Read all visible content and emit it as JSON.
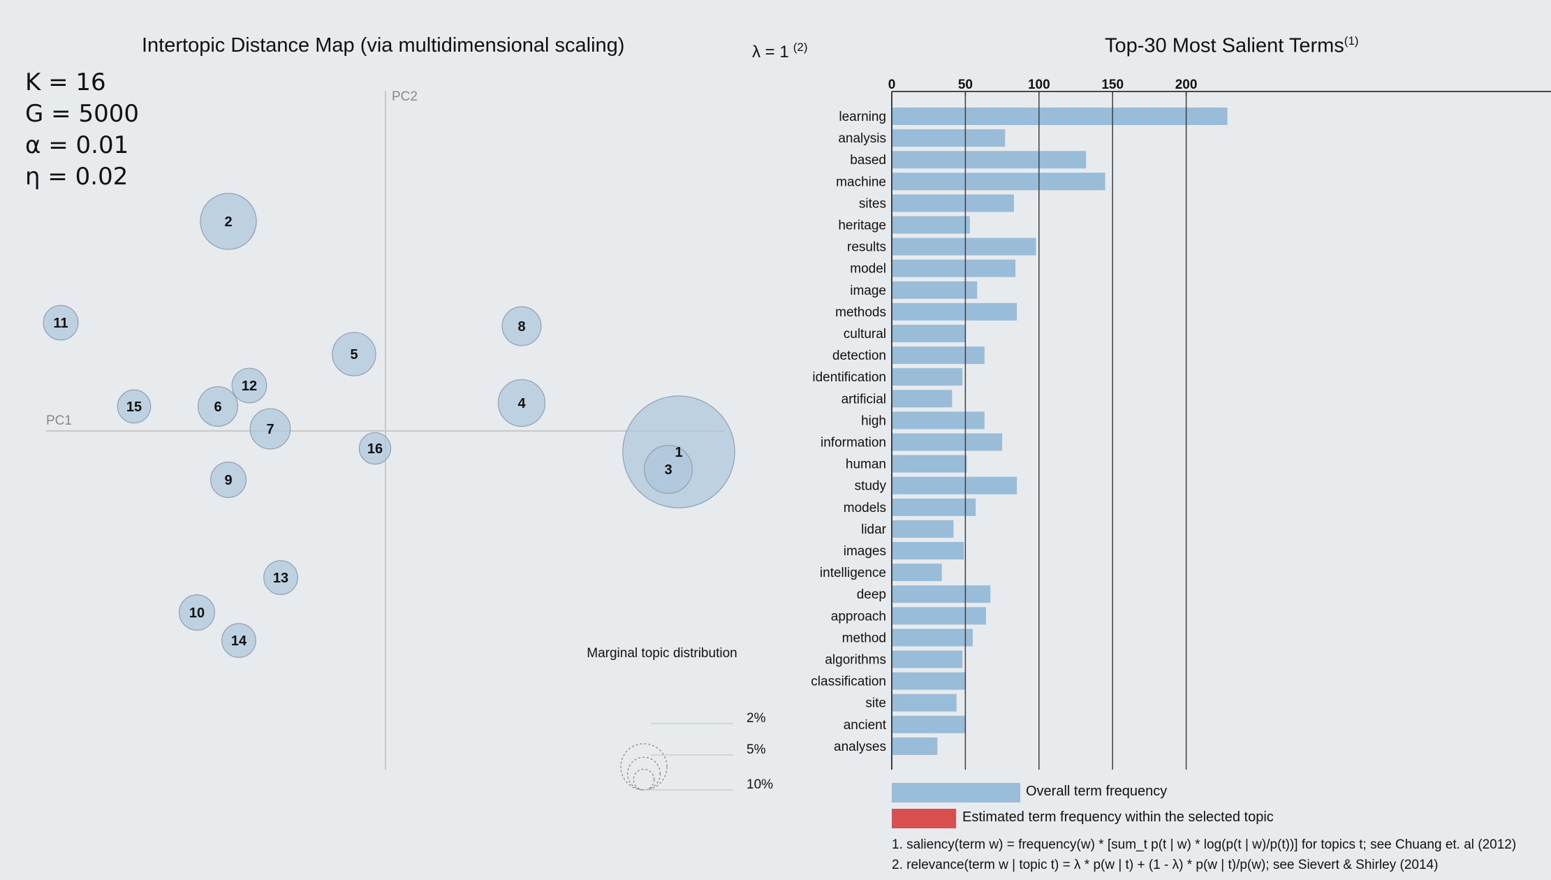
{
  "left": {
    "title": "Intertopic Distance Map (via multidimensional scaling)",
    "params": [
      "K = 16",
      "G = 5000",
      "α = 0.01",
      "η = 0.02"
    ],
    "axis_labels": {
      "pc1": "PC1",
      "pc2": "PC2"
    },
    "marginal": {
      "title": "Marginal topic distribution",
      "labels": [
        "2%",
        "5%",
        "10%"
      ]
    }
  },
  "right": {
    "lambda_label": "λ = 1",
    "lambda_sup": "(2)",
    "title": "Top-30 Most Salient Terms",
    "title_sup": "(1)",
    "legend": {
      "overall": "Overall term frequency",
      "estimated": "Estimated term frequency within the selected topic"
    },
    "footnotes": [
      "1. saliency(term w) = frequency(w) * [sum_t p(t | w) * log(p(t | w)/p(t))] for topics t; see Chuang et. al (2012)",
      "2. relevance(term w | topic t) = λ * p(w | t) + (1 - λ) * p(w | t)/p(w); see Sievert & Shirley (2014)"
    ]
  },
  "colors": {
    "bubble_fill": "#adc6db",
    "bubble_stroke": "#8fa0b0",
    "bar_blue": "#99bcd9",
    "bar_red": "#d94f4f",
    "axis_grey": "#c8c8c8",
    "grid_dark": "#3a3f44"
  },
  "chart_data": [
    {
      "type": "scatter",
      "title": "Intertopic Distance Map (via multidimensional scaling)",
      "xlabel": "PC1",
      "ylabel": "PC2",
      "points": [
        {
          "topic": "1",
          "x": 0.28,
          "y": -0.03,
          "size": 0.24
        },
        {
          "topic": "2",
          "x": -0.15,
          "y": 0.3,
          "size": 0.06
        },
        {
          "topic": "3",
          "x": 0.27,
          "y": -0.055,
          "size": 0.044
        },
        {
          "topic": "4",
          "x": 0.13,
          "y": 0.04,
          "size": 0.042
        },
        {
          "topic": "5",
          "x": -0.03,
          "y": 0.11,
          "size": 0.036
        },
        {
          "topic": "6",
          "x": -0.16,
          "y": 0.035,
          "size": 0.03
        },
        {
          "topic": "7",
          "x": -0.11,
          "y": 0.003,
          "size": 0.031
        },
        {
          "topic": "8",
          "x": 0.13,
          "y": 0.15,
          "size": 0.029
        },
        {
          "topic": "9",
          "x": -0.15,
          "y": -0.07,
          "size": 0.024
        },
        {
          "topic": "10",
          "x": -0.18,
          "y": -0.26,
          "size": 0.024
        },
        {
          "topic": "11",
          "x": -0.31,
          "y": 0.155,
          "size": 0.023
        },
        {
          "topic": "12",
          "x": -0.13,
          "y": 0.065,
          "size": 0.023
        },
        {
          "topic": "13",
          "x": -0.1,
          "y": -0.21,
          "size": 0.022
        },
        {
          "topic": "14",
          "x": -0.14,
          "y": -0.3,
          "size": 0.022
        },
        {
          "topic": "15",
          "x": -0.24,
          "y": 0.035,
          "size": 0.021
        },
        {
          "topic": "16",
          "x": -0.01,
          "y": -0.025,
          "size": 0.019
        }
      ]
    },
    {
      "type": "bar",
      "orientation": "horizontal",
      "title": "Top-30 Most Salient Terms",
      "xlim": [
        0,
        225
      ],
      "xticks": [
        0,
        50,
        100,
        150,
        200
      ],
      "categories": [
        "learning",
        "analysis",
        "based",
        "machine",
        "sites",
        "heritage",
        "results",
        "model",
        "image",
        "methods",
        "cultural",
        "detection",
        "identification",
        "artificial",
        "high",
        "information",
        "human",
        "study",
        "models",
        "lidar",
        "images",
        "intelligence",
        "deep",
        "approach",
        "method",
        "algorithms",
        "classification",
        "site",
        "ancient",
        "analyses"
      ],
      "series": [
        {
          "name": "Overall term frequency",
          "values": [
            228,
            77,
            132,
            145,
            83,
            53,
            98,
            84,
            58,
            85,
            50,
            63,
            48,
            41,
            63,
            75,
            51,
            85,
            57,
            42,
            49,
            34,
            67,
            64,
            55,
            48,
            50,
            44,
            50,
            31
          ]
        }
      ]
    }
  ]
}
